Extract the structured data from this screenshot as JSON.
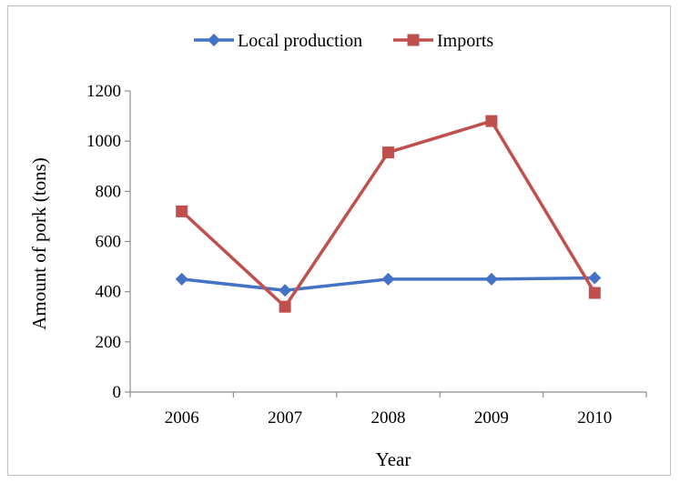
{
  "chart_data": {
    "type": "line",
    "categories": [
      "2006",
      "2007",
      "2008",
      "2009",
      "2010"
    ],
    "series": [
      {
        "name": "Local production",
        "values": [
          450,
          405,
          450,
          450,
          455
        ],
        "color": "#4472c4",
        "marker": "diamond"
      },
      {
        "name": "Imports",
        "values": [
          720,
          340,
          955,
          1080,
          395
        ],
        "color": "#c0504d",
        "marker": "square"
      }
    ],
    "title": "",
    "xlabel": "Year",
    "ylabel": "Amount  of pork (tons)",
    "ylim": [
      0,
      1200
    ],
    "yticks": [
      "0",
      "200",
      "400",
      "600",
      "800",
      "1000",
      "1200"
    ],
    "grid": false,
    "legend_position": "top-center"
  }
}
